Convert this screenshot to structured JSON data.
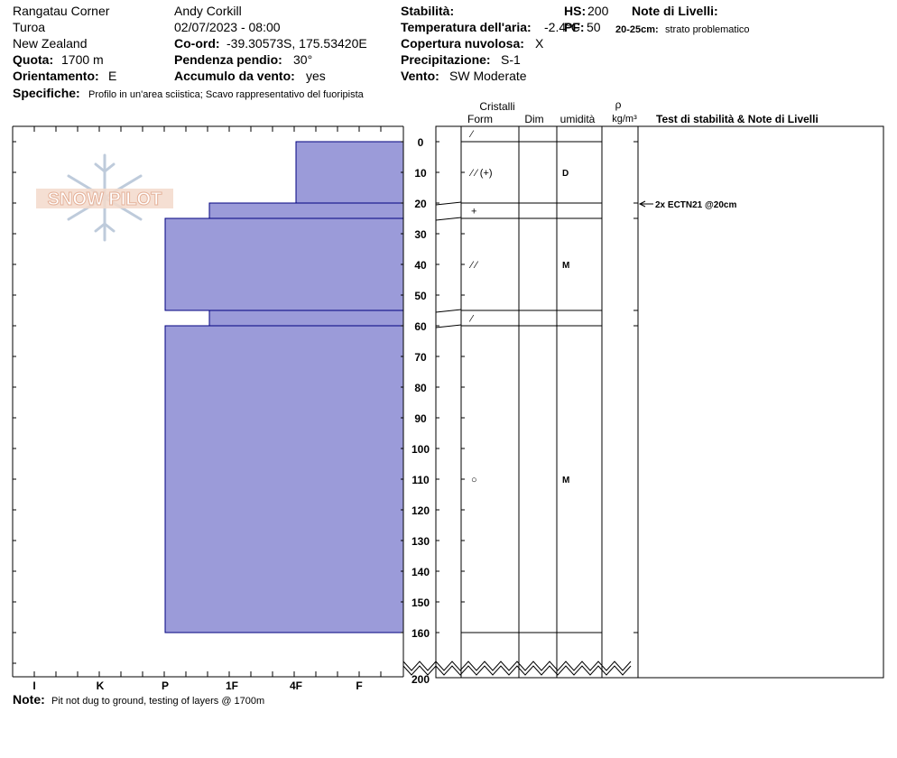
{
  "header": {
    "location_line1": "Rangatau Corner",
    "location_line2": "Turoa",
    "location_line3": "New Zealand",
    "elevation_label": "Quota:",
    "elevation_value": "1700 m",
    "aspect_label": "Orientamento:",
    "aspect_value": "E",
    "specifics_label": "Specifiche:",
    "specifics_value": "Profilo in un'area sciistica; Scavo rappresentativo del fuoripista",
    "observer": "Andy Corkill",
    "datetime": "02/07/2023 - 08:00",
    "coord_label": "Co-ord:",
    "coord_value": "-39.30573S, 175.53420E",
    "slope_label": "Pendenza pendio:",
    "slope_value": "30°",
    "wind_loading_label": "Accumulo da vento:",
    "wind_loading_value": "yes",
    "stability_label": "Stabilità:",
    "air_temp_label": "Temperatura dell'aria:",
    "air_temp_value": "-2.4°C",
    "cloud_label": "Copertura nuvolosa:",
    "cloud_value": "X",
    "precip_label": "Precipitazione:",
    "precip_value": "S-1",
    "wind_label": "Vento:",
    "wind_value": "SW Moderate",
    "hs_label": "HS:",
    "hs_value": "200",
    "pf_label": "PF:",
    "pf_value": "50",
    "layer_notes_label": "Note di Livelli:",
    "layer_note_range": "20-25cm:",
    "layer_note_text": "strato problematico"
  },
  "logo_text": "SNOW PILOT",
  "footer": {
    "note_label": "Note:",
    "note_text": "Pit not dug to ground, testing of layers @ 1700m"
  },
  "chart_data": {
    "type": "bar",
    "title": "",
    "orientation": "horizontal",
    "y_axis": {
      "label": "",
      "range": [
        0,
        200
      ],
      "inverted": true,
      "ticks": [
        0,
        10,
        20,
        30,
        40,
        50,
        60,
        70,
        80,
        90,
        100,
        110,
        120,
        130,
        140,
        150,
        160,
        200
      ]
    },
    "x_axis": {
      "label": "",
      "categories": [
        "I",
        "K",
        "P",
        "1F",
        "4F",
        "F"
      ],
      "reversed": true
    },
    "hardness_layers": [
      {
        "top": 0,
        "bottom": 20,
        "hardness": "4F"
      },
      {
        "top": 20,
        "bottom": 25,
        "hardness": "1F-"
      },
      {
        "top": 25,
        "bottom": 55,
        "hardness": "P"
      },
      {
        "top": 55,
        "bottom": 60,
        "hardness": "1F-"
      },
      {
        "top": 60,
        "bottom": 160,
        "hardness": "P"
      }
    ],
    "column_headers": {
      "crystals": "Cristalli",
      "form": "Form",
      "size": "Dim",
      "moisture": "umidità",
      "density_symbol": "ρ",
      "density_unit": "kg/m³",
      "tests_notes": "Test di stabilità & Note di Livelli"
    },
    "layer_boundaries": [
      0,
      20,
      25,
      55,
      60,
      160
    ],
    "crystal_rows": [
      {
        "depth": 10,
        "form": "⁄ ⁄ (+)",
        "moisture": "D"
      },
      {
        "depth": 22.5,
        "form": "+",
        "moisture": ""
      },
      {
        "depth": 40,
        "form": "⁄ ⁄",
        "moisture": "M"
      },
      {
        "depth": 57.5,
        "form": "⁄",
        "moisture": ""
      },
      {
        "depth": 110,
        "form": "○",
        "moisture": "M"
      }
    ],
    "stability_tests": [
      {
        "depth": 20,
        "label": "2x ECTN21 @20cm"
      }
    ],
    "fill_color": "#9b9bd9",
    "border_color": "#000080"
  }
}
